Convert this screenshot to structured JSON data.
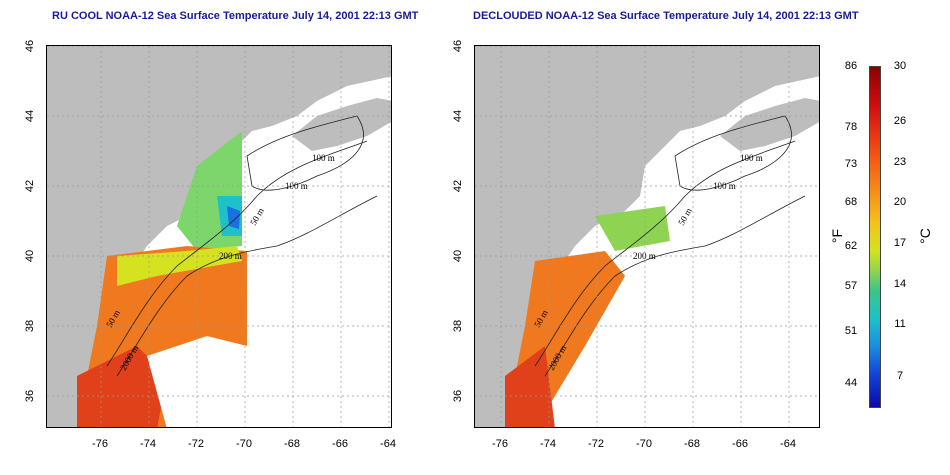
{
  "titles": {
    "left": "RU COOL NOAA-12 Sea Surface Temperature July 14, 2001 22:13 GMT",
    "right": "DECLOUDED NOAA-12 Sea Surface Temperature July 14, 2001 22:13 GMT"
  },
  "axes": {
    "lat_ticks": [
      "46",
      "44",
      "42",
      "40",
      "38",
      "36"
    ],
    "lon_ticks": [
      "-76",
      "-74",
      "-72",
      "-70",
      "-68",
      "-66",
      "-64"
    ]
  },
  "contour_labels": [
    "100 m",
    "100 m",
    "50 m",
    "200 m",
    "50 m",
    "2000 m"
  ],
  "colorbar": {
    "fahrenheit_label": "°F",
    "celsius_label": "°C",
    "fahrenheit_ticks": [
      "86",
      "78",
      "73",
      "68",
      "62",
      "57",
      "51",
      "44"
    ],
    "celsius_ticks": [
      "30",
      "26",
      "23",
      "20",
      "17",
      "14",
      "11",
      "7"
    ]
  },
  "colors": {
    "land": "#bdbdbd",
    "title": "#1a1aa0",
    "warm": "#f0781e",
    "cool": "#22b8d8"
  }
}
